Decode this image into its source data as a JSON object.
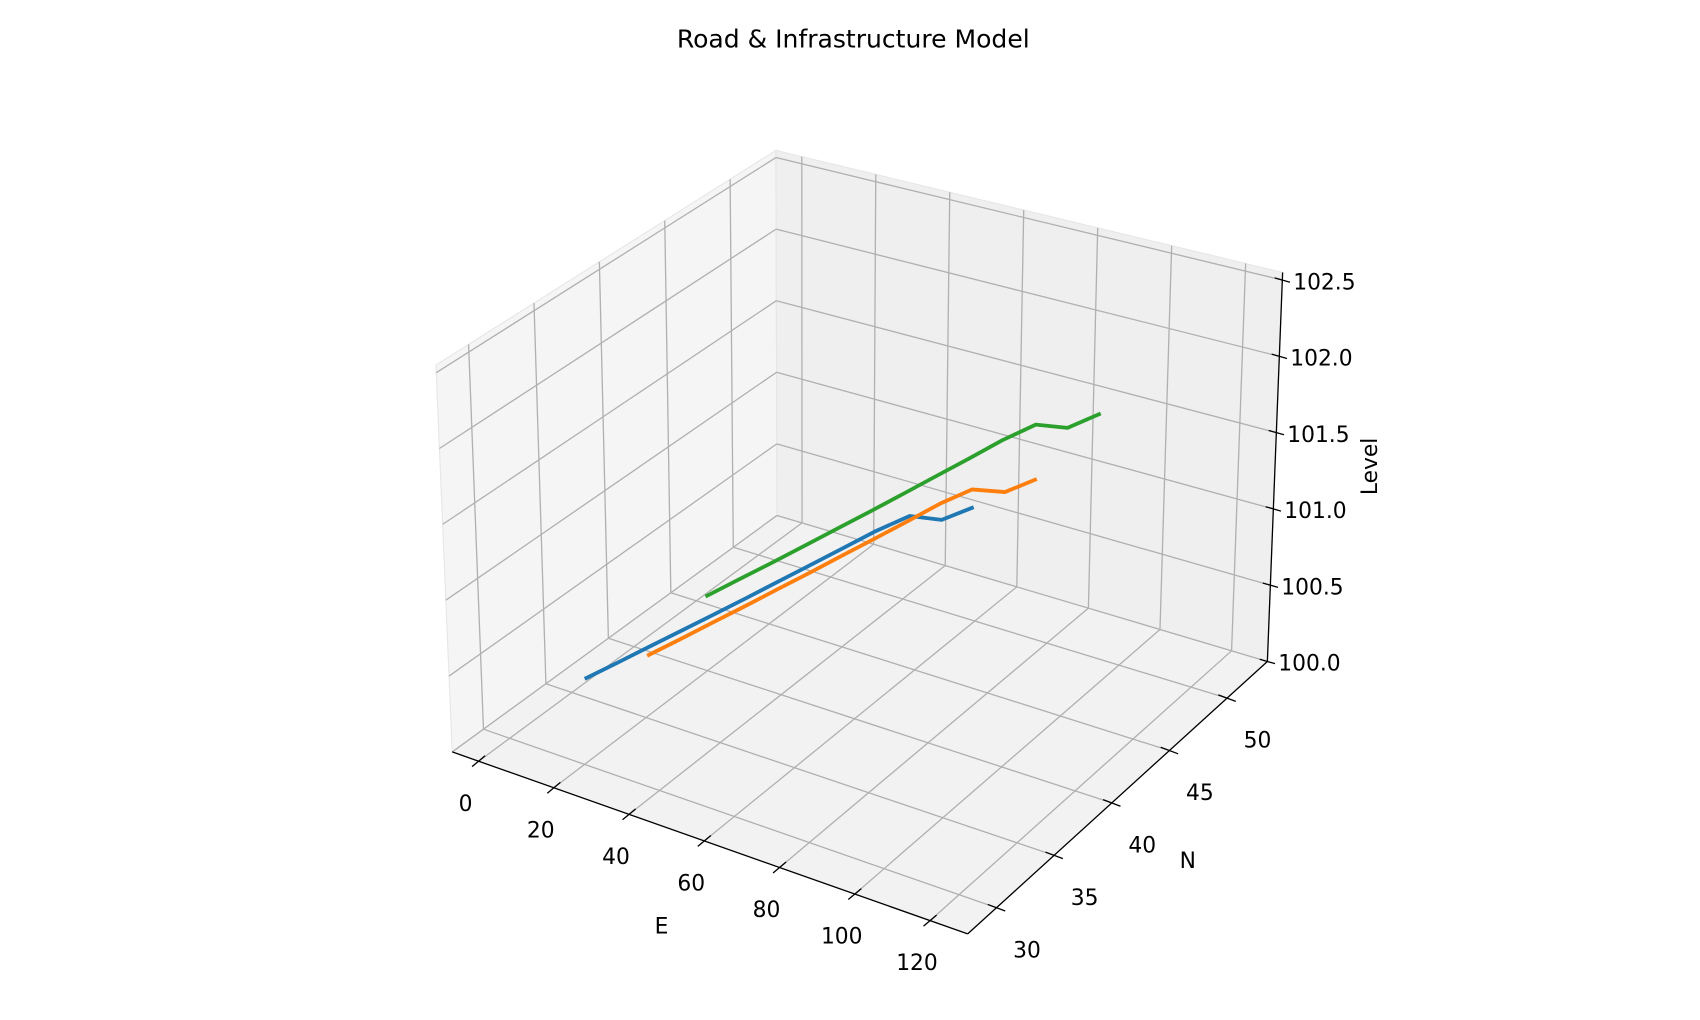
{
  "chart_data": {
    "type": "line3d",
    "title": "Road & Infrastructure Model",
    "xlabel": "E",
    "ylabel": "N",
    "zlabel": "Level",
    "xlim": [
      -7,
      130
    ],
    "ylim": [
      27.5,
      53.5
    ],
    "zlim": [
      100,
      102.55
    ],
    "xticks": [
      0,
      20,
      40,
      60,
      80,
      100,
      120
    ],
    "yticks": [
      30,
      35,
      40,
      45,
      50
    ],
    "zticks": [
      {
        "value": 100,
        "label": "100.0"
      },
      {
        "value": 100.5,
        "label": "100.5"
      },
      {
        "value": 101,
        "label": "101.0"
      },
      {
        "value": 101.5,
        "label": "101.5"
      },
      {
        "value": 102,
        "label": "102.0"
      },
      {
        "value": 102.5,
        "label": "102.5"
      }
    ],
    "grid": true,
    "series": [
      {
        "color": "#1f77b4",
        "x": [
          18,
          23,
          28,
          33,
          38,
          43,
          48,
          53,
          58,
          63,
          68,
          73,
          78
        ],
        "y": [
          30.8,
          31.9,
          33.1,
          34.2,
          35.3,
          36.4,
          37.6,
          38.7,
          39.8,
          40.9,
          42.1,
          43.2,
          44.3
        ],
        "z": [
          100.5,
          100.58,
          100.66,
          100.74,
          100.82,
          100.9,
          100.98,
          101.06,
          101.14,
          101.22,
          101.28,
          101.22,
          101.27
        ]
      },
      {
        "color": "#ff7f0e",
        "x": [
          20,
          25,
          30,
          35,
          40,
          45,
          50,
          55,
          60,
          65,
          70,
          75,
          80
        ],
        "y": [
          35.2,
          36.3,
          37.5,
          38.6,
          39.8,
          40.9,
          42.1,
          43.2,
          44.3,
          45.5,
          46.6,
          47.8,
          48.9
        ],
        "z": [
          100.4,
          100.48,
          100.56,
          100.64,
          100.72,
          100.8,
          100.88,
          100.96,
          101.04,
          101.12,
          101.18,
          101.12,
          101.17
        ]
      },
      {
        "color": "#2ca02c",
        "x": [
          35,
          40,
          45,
          50,
          55,
          60,
          65,
          70,
          75,
          80,
          85,
          90,
          95
        ],
        "y": [
          35.5,
          36.7,
          37.8,
          39.0,
          40.2,
          41.3,
          42.5,
          43.7,
          44.8,
          46.0,
          47.2,
          48.3,
          49.5
        ],
        "z": [
          100.9,
          100.98,
          101.06,
          101.14,
          101.22,
          101.3,
          101.38,
          101.46,
          101.54,
          101.62,
          101.68,
          101.62,
          101.67
        ]
      }
    ]
  }
}
